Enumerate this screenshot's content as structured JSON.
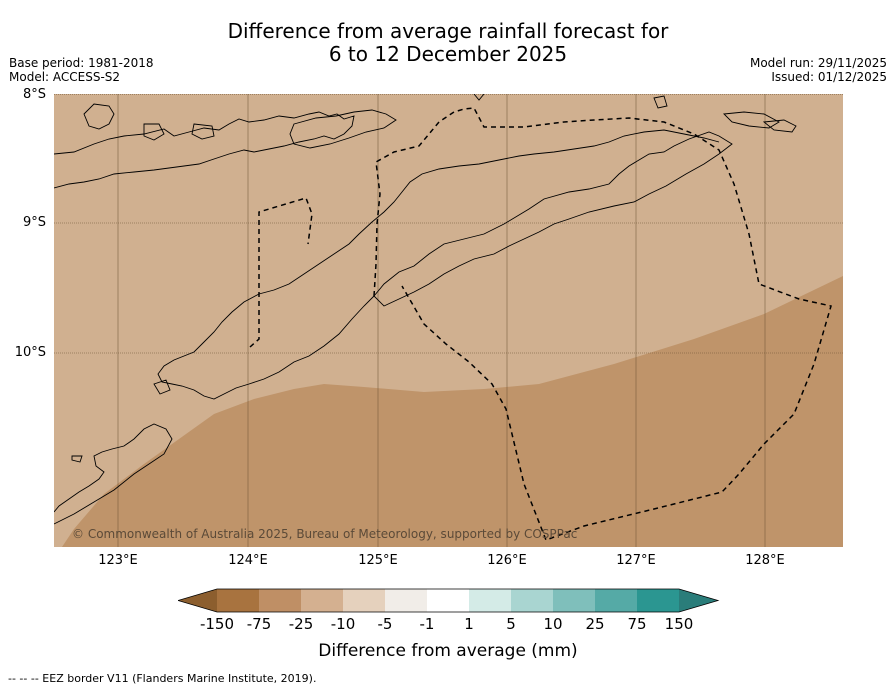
{
  "title": {
    "line1": "Difference from average rainfall forecast for",
    "line2": "6 to 12 December 2025"
  },
  "meta": {
    "base_period": "Base period: 1981-2018",
    "model": "Model: ACCESS-S2",
    "model_run": "Model run: 29/11/2025",
    "issued": "Issued: 01/12/2025"
  },
  "map": {
    "latitude_labels": [
      "8°S",
      "9°S",
      "10°S"
    ],
    "longitude_labels": [
      "123°E",
      "124°E",
      "125°E",
      "126°E",
      "127°E",
      "128°E"
    ],
    "copyright": "© Commonwealth of Australia 2025, Bureau of Meteorology, supported by COSPPac",
    "colors": {
      "light_tan": "#d0b090",
      "darker_tan": "#bf946a",
      "coast": "#000000"
    }
  },
  "legend": {
    "labels": [
      "-150",
      "-75",
      "-25",
      "-10",
      "-5",
      "-1",
      "1",
      "5",
      "10",
      "25",
      "75",
      "150"
    ],
    "colors": [
      "#8c5e2e",
      "#a8733f",
      "#bf8f65",
      "#d4b090",
      "#e5d1bd",
      "#f1ede8",
      "#ffffff",
      "#d4ebe7",
      "#a9d5d1",
      "#7fbfbb",
      "#55aaa6",
      "#2b9691",
      "#2a7d7a"
    ],
    "title": "Difference from average (mm)"
  },
  "footnote": "-- -- -- EEZ border V11 (Flanders Marine Institute, 2019)."
}
